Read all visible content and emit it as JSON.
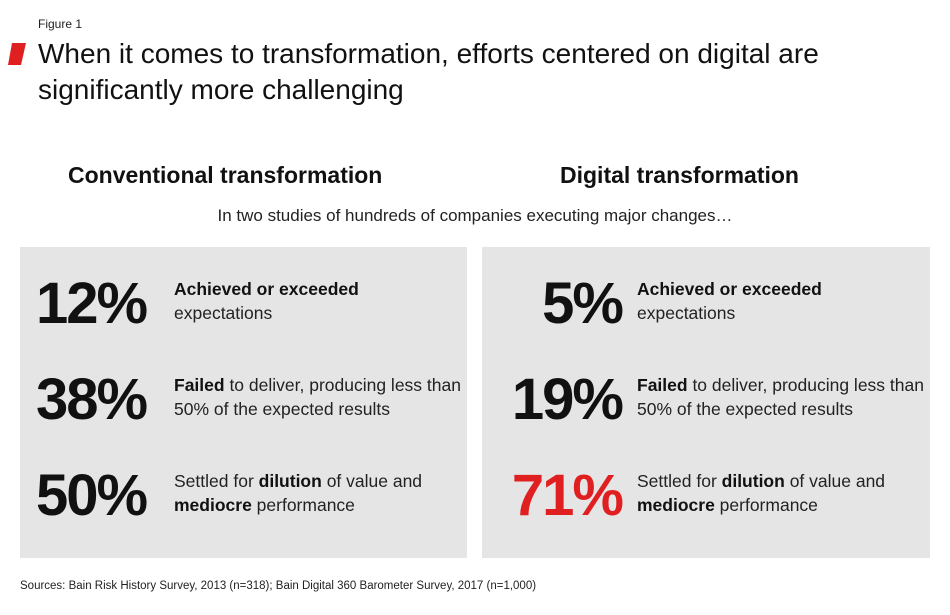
{
  "figure_label": "Figure 1",
  "title": "When it comes to transformation, efforts centered on digital are significantly more challenging",
  "subtitle": "In two studies of hundreds of companies executing major changes…",
  "source": "Sources: Bain Risk History Survey, 2013 (n=318); Bain Digital 360 Barometer Survey, 2017 (n=1,000)",
  "colors": {
    "accent": "#e02020",
    "panel_bg": "#e5e5e5",
    "text": "#111111",
    "highlight": "#e02020"
  },
  "chart_data": {
    "type": "table",
    "title": "When it comes to transformation, efforts centered on digital are significantly more challenging",
    "columns": [
      {
        "name": "Conventional transformation",
        "rows": [
          {
            "value": "12%",
            "strong": "Achieved or exceeded",
            "pre": "",
            "post": "expectations",
            "strong2": "",
            "post2": "",
            "highlight": false
          },
          {
            "value": "38%",
            "strong": "Failed",
            "pre": "",
            "post": " to deliver, producing less than 50% of the expected results",
            "strong2": "",
            "post2": "",
            "highlight": false
          },
          {
            "value": "50%",
            "strong": "dilution",
            "pre": "Settled for ",
            "post": " of value and ",
            "strong2": "mediocre",
            "post2": " performance",
            "highlight": false
          }
        ]
      },
      {
        "name": "Digital transformation",
        "rows": [
          {
            "value": "5%",
            "strong": "Achieved or exceeded",
            "pre": "",
            "post": "expectations",
            "strong2": "",
            "post2": "",
            "highlight": false
          },
          {
            "value": "19%",
            "strong": "Failed",
            "pre": "",
            "post": " to deliver, producing less than 50% of the expected results",
            "strong2": "",
            "post2": "",
            "highlight": false
          },
          {
            "value": "71%",
            "strong": "dilution",
            "pre": "Settled for ",
            "post": " of value and ",
            "strong2": "mediocre",
            "post2": " performance",
            "highlight": true
          }
        ]
      }
    ]
  }
}
